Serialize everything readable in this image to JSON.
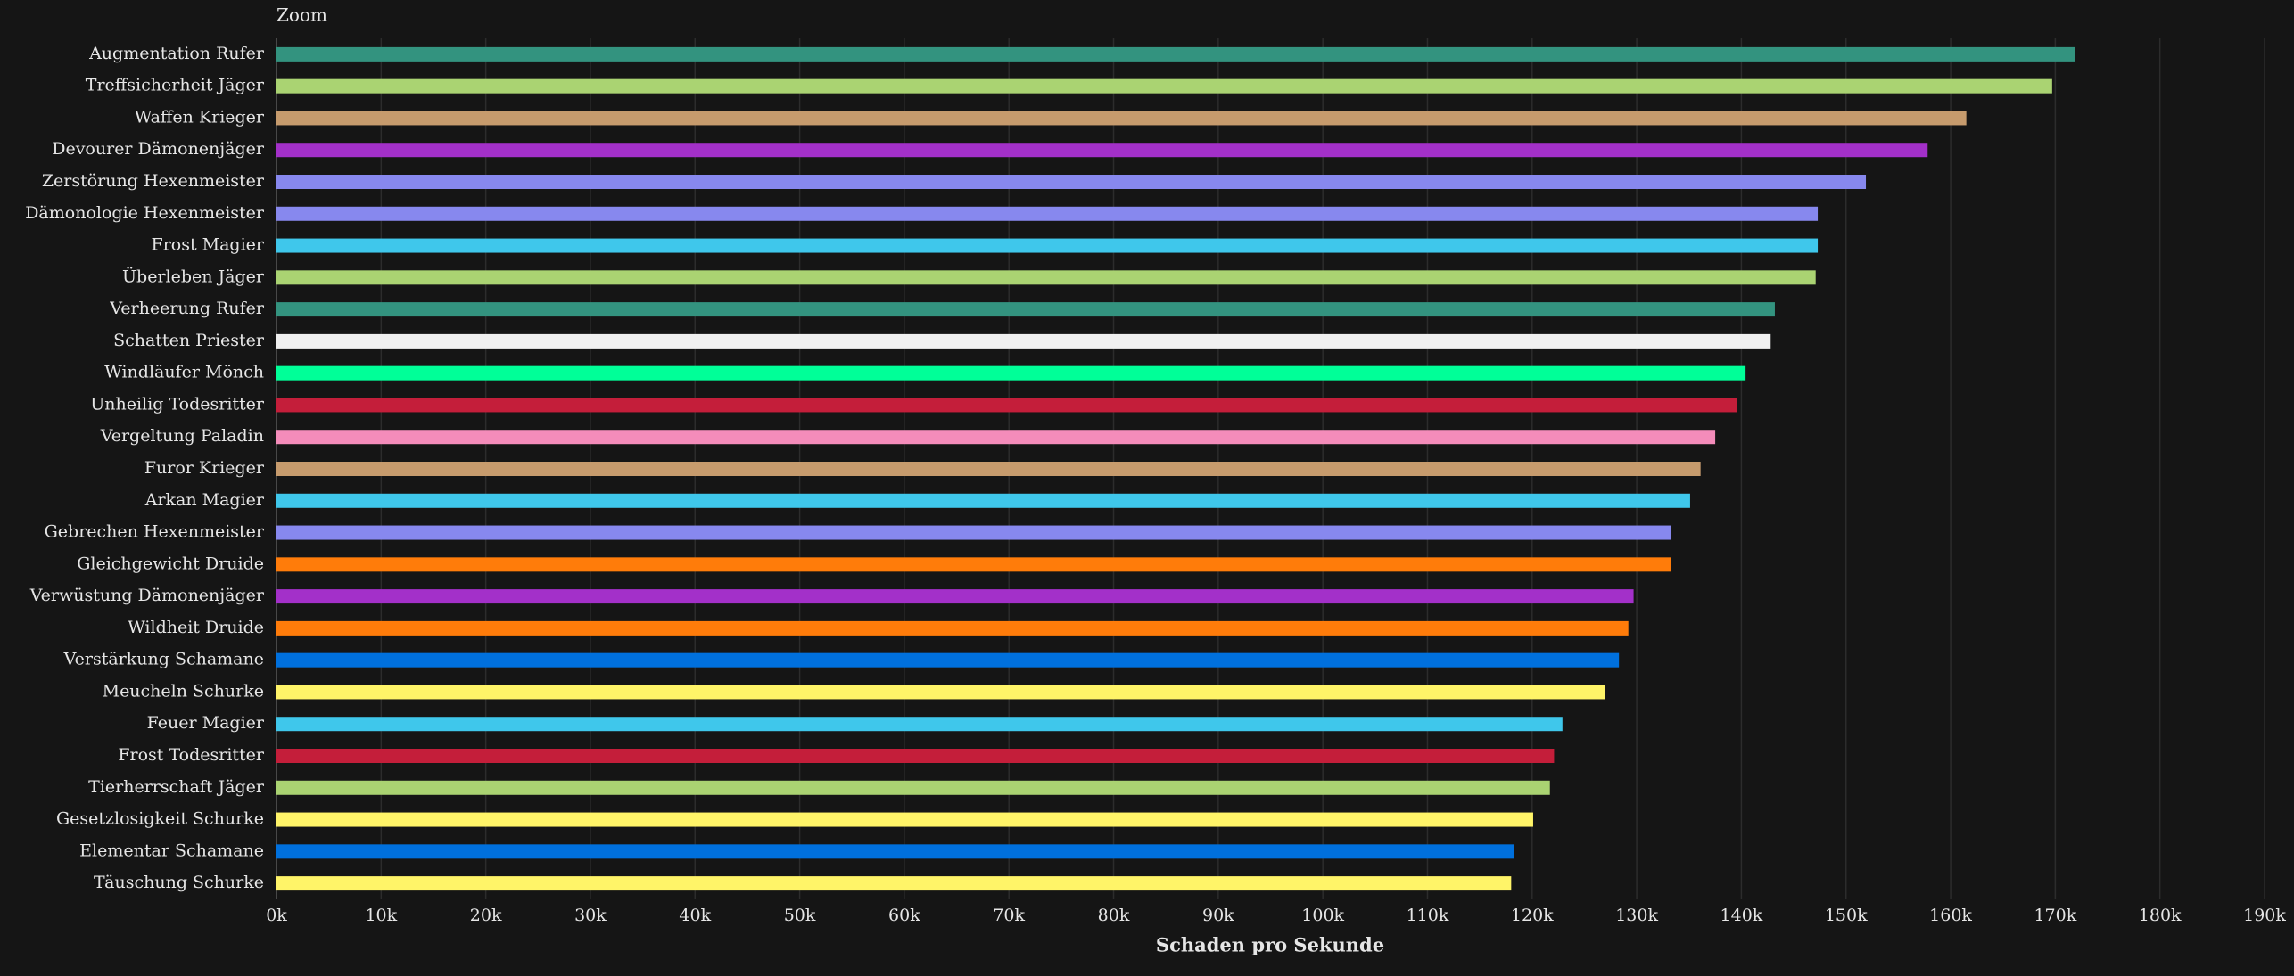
{
  "zoom_label": "Zoom",
  "chart_data": {
    "type": "bar",
    "orientation": "horizontal",
    "xlabel": "Schaden pro Sekunde",
    "categories": [
      "Augmentation Rufer",
      "Treffsicherheit Jäger",
      "Waffen Krieger",
      "Devourer Dämonenjäger",
      "Zerstörung Hexenmeister",
      "Dämonologie Hexenmeister",
      "Frost Magier",
      "Überleben Jäger",
      "Verheerung Rufer",
      "Schatten Priester",
      "Windläufer Mönch",
      "Unheilig Todesritter",
      "Vergeltung Paladin",
      "Furor Krieger",
      "Arkan Magier",
      "Gebrechen Hexenmeister",
      "Gleichgewicht Druide",
      "Verwüstung Dämonenjäger",
      "Wildheit Druide",
      "Verstärkung Schamane",
      "Meucheln Schurke",
      "Feuer Magier",
      "Frost Todesritter",
      "Tierherrschaft Jäger",
      "Gesetzlosigkeit Schurke",
      "Elementar Schamane",
      "Täuschung Schurke"
    ],
    "values": [
      171900,
      169700,
      161500,
      157800,
      151900,
      147300,
      147300,
      147100,
      143200,
      142800,
      140400,
      139600,
      137500,
      136100,
      135100,
      133300,
      133300,
      129700,
      129200,
      128300,
      127000,
      122900,
      122100,
      121700,
      120100,
      118300,
      118000
    ],
    "colors": [
      "#33937f",
      "#aad372",
      "#c69b6d",
      "#a330c9",
      "#8788ee",
      "#8788ee",
      "#3fc7eb",
      "#aad372",
      "#33937f",
      "#f0f0f0",
      "#00ff98",
      "#c41e3a",
      "#f48cba",
      "#c69b6d",
      "#3fc7eb",
      "#8788ee",
      "#ff7c0a",
      "#a330c9",
      "#ff7c0a",
      "#0070dd",
      "#fff468",
      "#3fc7eb",
      "#c41e3a",
      "#aad372",
      "#fff468",
      "#0070dd",
      "#fff468"
    ],
    "xlim": [
      0,
      190000
    ],
    "xticks": [
      {
        "value": 0,
        "label": "0k"
      },
      {
        "value": 10000,
        "label": "10k"
      },
      {
        "value": 20000,
        "label": "20k"
      },
      {
        "value": 30000,
        "label": "30k"
      },
      {
        "value": 40000,
        "label": "40k"
      },
      {
        "value": 50000,
        "label": "50k"
      },
      {
        "value": 60000,
        "label": "60k"
      },
      {
        "value": 70000,
        "label": "70k"
      },
      {
        "value": 80000,
        "label": "80k"
      },
      {
        "value": 90000,
        "label": "90k"
      },
      {
        "value": 100000,
        "label": "100k"
      },
      {
        "value": 110000,
        "label": "110k"
      },
      {
        "value": 120000,
        "label": "120k"
      },
      {
        "value": 130000,
        "label": "130k"
      },
      {
        "value": 140000,
        "label": "140k"
      },
      {
        "value": 150000,
        "label": "150k"
      },
      {
        "value": 160000,
        "label": "160k"
      },
      {
        "value": 170000,
        "label": "170k"
      },
      {
        "value": 180000,
        "label": "180k"
      },
      {
        "value": 190000,
        "label": "190k"
      }
    ],
    "grid": true
  }
}
